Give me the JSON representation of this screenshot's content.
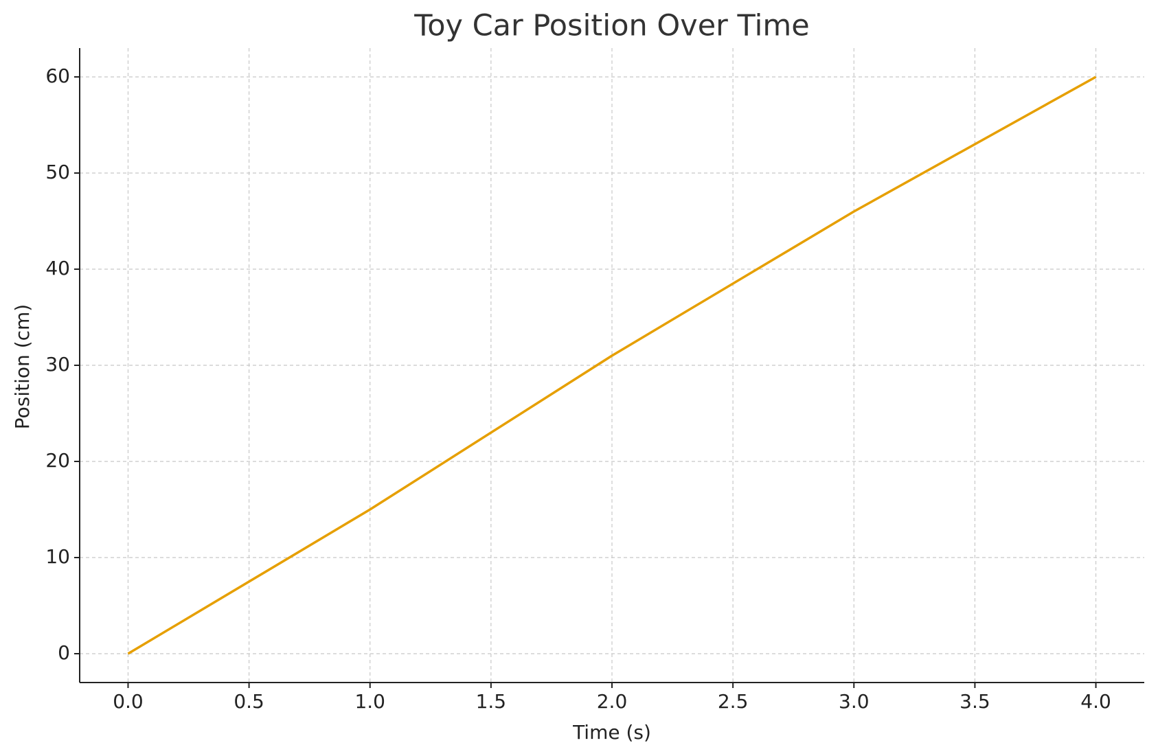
{
  "chart_data": {
    "type": "line",
    "title": "Toy Car Position Over Time",
    "x_label": "Time (s)",
    "y_label": "Position (cm)",
    "x": [
      0,
      1,
      2,
      3,
      4
    ],
    "series": [
      {
        "name": "Position",
        "color": "#e69f00",
        "values": [
          0,
          15,
          31,
          46,
          60
        ]
      }
    ],
    "xlim": [
      -0.2,
      4.2
    ],
    "xticks": [
      {
        "value": 0,
        "label": "0.0"
      },
      {
        "value": 0.5,
        "label": "0.5"
      },
      {
        "value": 1,
        "label": "1.0"
      },
      {
        "value": 1.5,
        "label": "1.5"
      },
      {
        "value": 2,
        "label": "2.0"
      },
      {
        "value": 2.5,
        "label": "2.5"
      },
      {
        "value": 3,
        "label": "3.0"
      },
      {
        "value": 3.5,
        "label": "3.5"
      },
      {
        "value": 4,
        "label": "4.0"
      }
    ],
    "ylim": [
      -3,
      63
    ],
    "yticks": [
      0,
      10,
      20,
      30,
      40,
      50,
      60
    ],
    "grid": true
  }
}
